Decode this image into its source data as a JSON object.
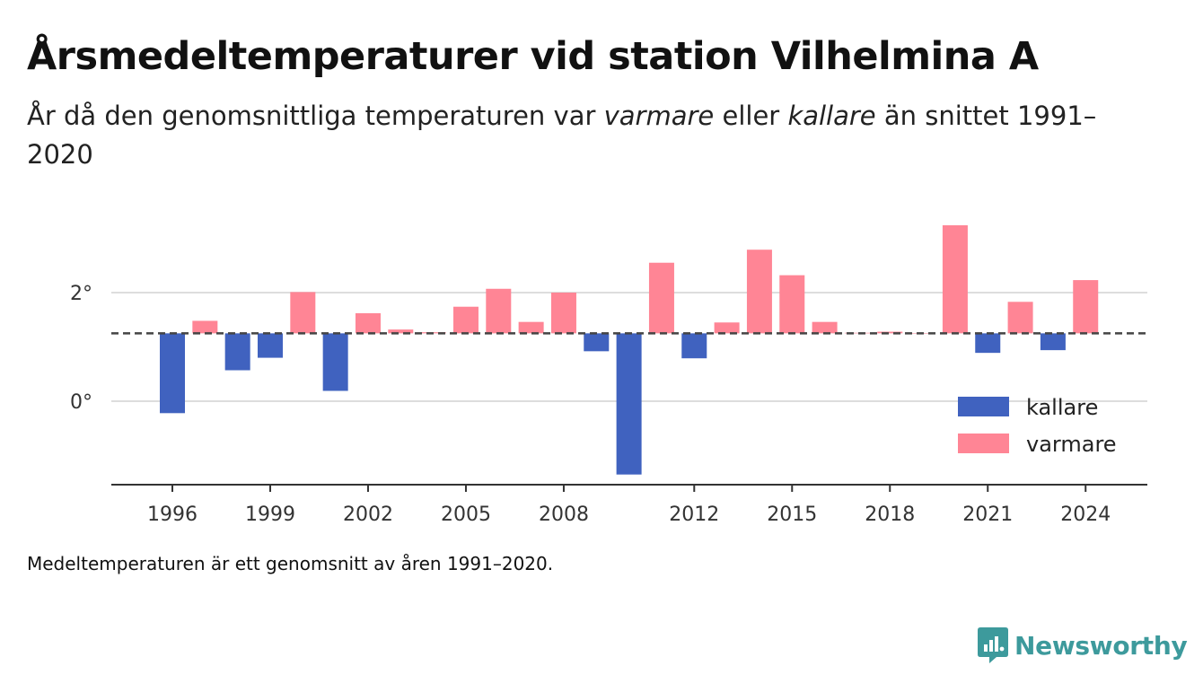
{
  "title": "Årsmedeltemperaturer vid station Vilhelmina A",
  "subtitle": {
    "part1": "År då den genomsnittliga temperaturen var ",
    "warm_word": "varmare",
    "part2": " eller ",
    "cold_word": "kallare",
    "part3": " än snittet 1991–2020"
  },
  "footnote": "Medeltemperaturen är ett genomsnitt av åren 1991–2020.",
  "brand": {
    "name": "Newsworthy",
    "icon": "newsworthy-logo-icon",
    "color": "#3d9a9c"
  },
  "chart_data": {
    "type": "bar",
    "baseline": 1.25,
    "ylim": [
      -1.5,
      3.4
    ],
    "y_ticks": [
      {
        "value": 0,
        "label": "0°"
      },
      {
        "value": 2,
        "label": "2°"
      }
    ],
    "x_ticks": [
      "1996",
      "1999",
      "2002",
      "2005",
      "2008",
      "2012",
      "2015",
      "2018",
      "2021",
      "2024"
    ],
    "grid": true,
    "legend_position": "bottom-right",
    "colors": {
      "kallare": "#4062bf",
      "varmare": "#ff8595",
      "baseline": "#444444",
      "grid": "#dddddd"
    },
    "legend": [
      {
        "key": "kallare",
        "label": "kallare"
      },
      {
        "key": "varmare",
        "label": "varmare"
      }
    ],
    "x": [
      1996,
      1997,
      1998,
      1999,
      2000,
      2001,
      2002,
      2003,
      2004,
      2005,
      2006,
      2007,
      2008,
      2009,
      2010,
      2011,
      2012,
      2013,
      2014,
      2015,
      2016,
      2017,
      2018,
      2019,
      2020,
      2021,
      2022,
      2023,
      2024
    ],
    "values": [
      -0.22,
      1.48,
      0.57,
      0.8,
      2.01,
      0.19,
      1.62,
      1.32,
      1.27,
      1.74,
      2.07,
      1.46,
      2.0,
      0.92,
      -1.35,
      2.55,
      0.79,
      1.45,
      2.79,
      2.32,
      1.46,
      1.26,
      1.28,
      1.25,
      3.24,
      0.89,
      1.83,
      0.94,
      2.23
    ]
  }
}
